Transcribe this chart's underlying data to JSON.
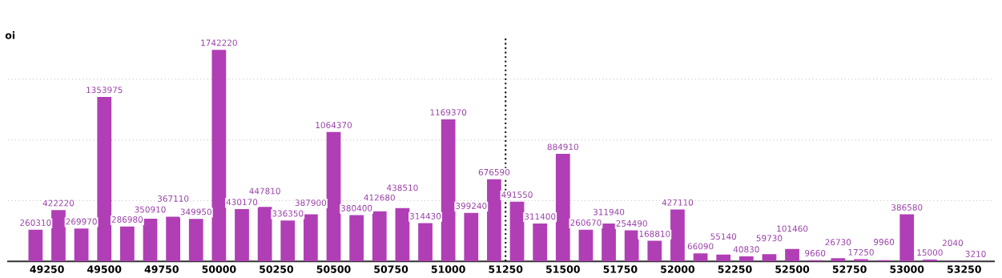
{
  "chart_data": {
    "type": "bar",
    "ylabel": "oi",
    "x": [
      49200,
      49300,
      49400,
      49500,
      49600,
      49700,
      49800,
      49900,
      50000,
      50100,
      50200,
      50300,
      50400,
      50500,
      50600,
      50700,
      50800,
      50900,
      51000,
      51100,
      51200,
      51300,
      51400,
      51500,
      51600,
      51700,
      51800,
      51900,
      52000,
      52100,
      52200,
      52300,
      52400,
      52500,
      52600,
      52700,
      52800,
      52900,
      53000,
      53100,
      53200,
      53300
    ],
    "values": [
      260310,
      422220,
      269970,
      1353975,
      286980,
      350910,
      367110,
      349950,
      1742220,
      430170,
      447810,
      336350,
      387900,
      1064370,
      380400,
      412680,
      438510,
      314430,
      1169370,
      399240,
      676590,
      491550,
      311400,
      884910,
      260670,
      311940,
      254490,
      168810,
      427110,
      66090,
      55140,
      40830,
      59730,
      101460,
      9660,
      26730,
      17250,
      9960,
      386580,
      15000,
      2040,
      3210
    ],
    "color": "#b03fb5",
    "data_labels": true,
    "xlim": [
      49080,
      53380
    ],
    "xticks": [
      49250,
      49500,
      49750,
      50000,
      50250,
      50500,
      50750,
      51000,
      51250,
      51500,
      51750,
      52000,
      52250,
      52500,
      52750,
      53000,
      53250
    ],
    "ylim": [
      0,
      1850000
    ],
    "yticks": [
      {
        "value": 0,
        "label": null
      },
      {
        "value": 500000,
        "label": null
      },
      {
        "value": 1000000,
        "label": null
      },
      {
        "value": 1500000,
        "label": null
      }
    ],
    "tick_labels": "x",
    "grid": "y",
    "ref_lines": [
      {
        "axis": "x",
        "value": 51250,
        "label": null,
        "color": "#111111",
        "line_style": "dotted"
      }
    ]
  }
}
